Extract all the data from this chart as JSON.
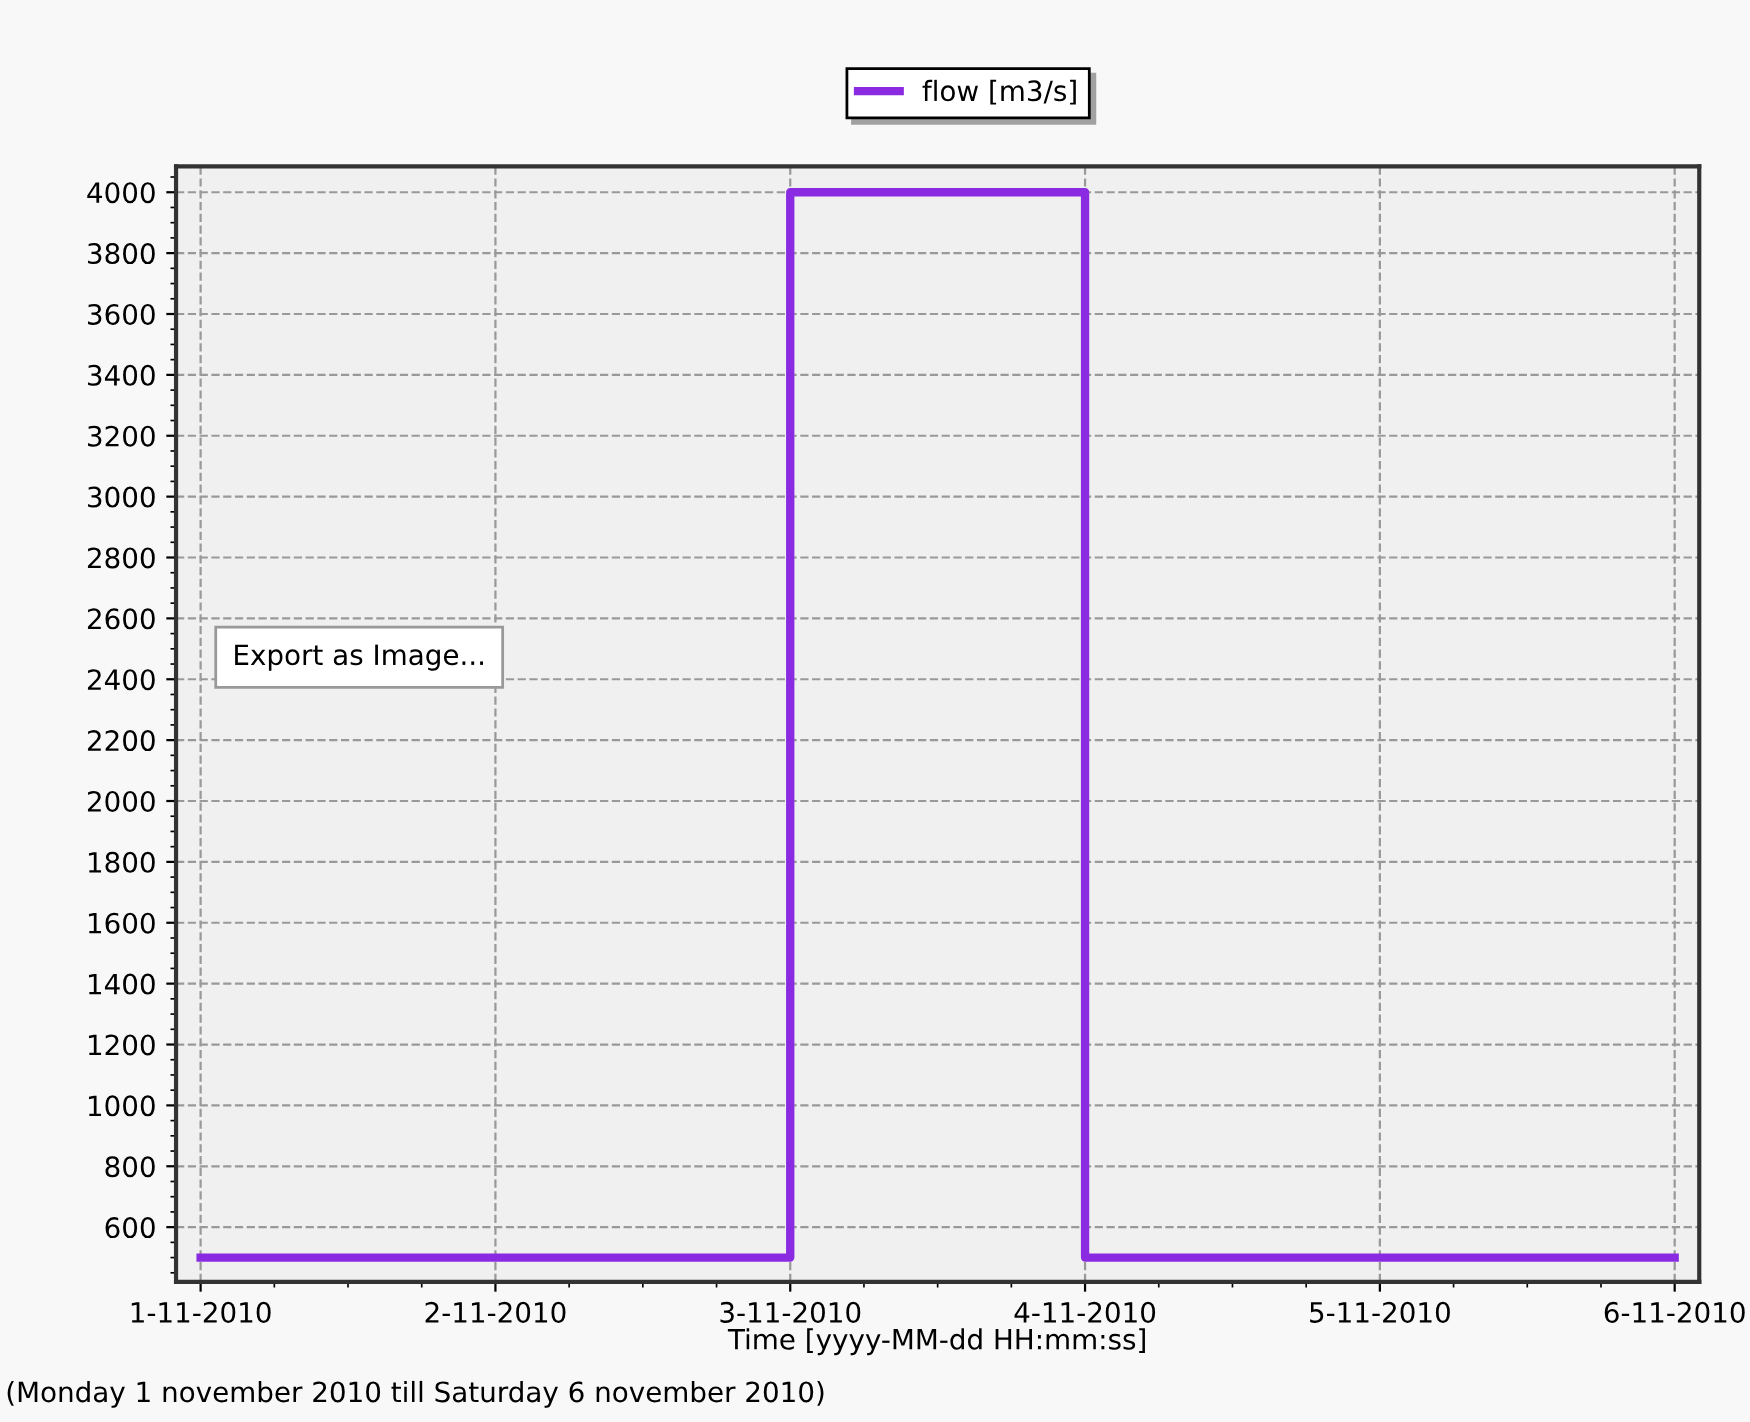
{
  "chart_data": {
    "type": "step",
    "xlabel": "Time [yyyy-MM-dd HH:mm:ss]",
    "x": [
      "2010-11-01",
      "2010-11-03",
      "2010-11-04",
      "2010-11-06"
    ],
    "series": [
      {
        "name": "flow [m3/s]",
        "color": "#8a2be2",
        "values": [
          500,
          4000,
          500,
          500
        ]
      }
    ],
    "xlim": [
      "2010-10-31T22:00",
      "2010-11-06T02:00"
    ],
    "xticks": [
      {
        "value": "2010-11-01",
        "label": "1-11-2010"
      },
      {
        "value": "2010-11-02",
        "label": "2-11-2010"
      },
      {
        "value": "2010-11-03",
        "label": "3-11-2010"
      },
      {
        "value": "2010-11-04",
        "label": "4-11-2010"
      },
      {
        "value": "2010-11-05",
        "label": "5-11-2010"
      },
      {
        "value": "2010-11-06",
        "label": "6-11-2010"
      }
    ],
    "ylim": [
      420,
      4085
    ],
    "yticks": [
      600,
      800,
      1000,
      1200,
      1400,
      1600,
      1800,
      2000,
      2200,
      2400,
      2600,
      2800,
      3000,
      3200,
      3400,
      3600,
      3800,
      4000
    ],
    "grid": true,
    "legend": "top",
    "line_style": "solid",
    "annotations": [
      "Export as Image...",
      "(Monday 1 november 2010 till Saturday 6 november 2010)"
    ]
  }
}
